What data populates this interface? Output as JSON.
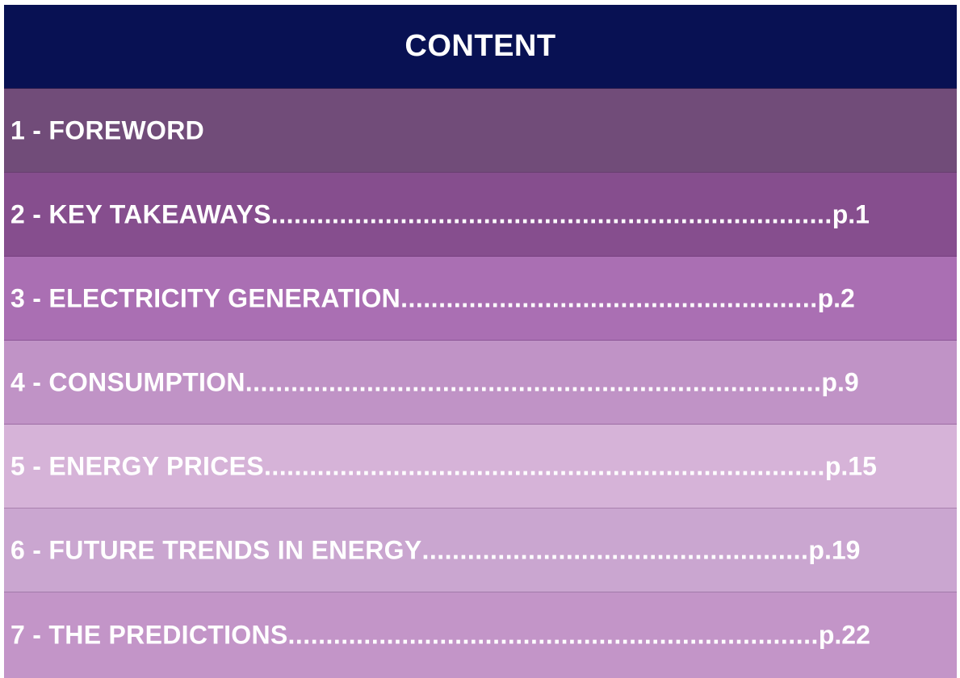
{
  "toc": {
    "heading": "CONTENT",
    "entries": [
      {
        "title": "1 - FOREWORD",
        "leader": "",
        "page": ""
      },
      {
        "title": "2 - KEY TAKEAWAYS",
        "leader": "..........................................................................",
        "page": "p.1"
      },
      {
        "title": "3 - ELECTRICITY GENERATION",
        "leader": ".......................................................",
        "page": "p.2"
      },
      {
        "title": "4 - CONSUMPTION",
        "leader": "............................................................................",
        "page": "p.9"
      },
      {
        "title": "5 - ENERGY PRICES",
        "leader": "..........................................................................",
        "page": "p.15"
      },
      {
        "title": "6 - FUTURE TRENDS IN ENERGY",
        "leader": "...................................................",
        "page": "p.19"
      },
      {
        "title": "7 - THE PREDICTIONS",
        "leader": "......................................................................",
        "page": "p.22"
      }
    ]
  }
}
